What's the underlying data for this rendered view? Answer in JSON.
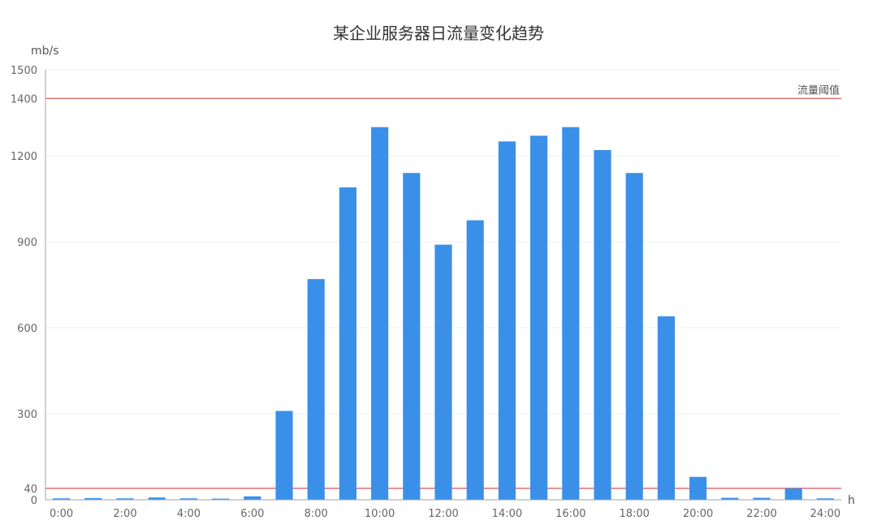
{
  "chart_data": {
    "type": "bar",
    "title": "某企业服务器日流量变化趋势",
    "ylabel": "mb/s",
    "xlabel": "h",
    "ylim": [
      0,
      1500
    ],
    "grid": true,
    "y_ticks": [
      0,
      40,
      300,
      600,
      900,
      1200,
      1400,
      1500
    ],
    "y_tick_labels": [
      "0",
      "40",
      "300",
      "600",
      "900",
      "1200",
      "1400",
      "1500"
    ],
    "x_tick_labels": [
      "0:00",
      "2:00",
      "4:00",
      "6:00",
      "8:00",
      "10:00",
      "12:00",
      "14:00",
      "16:00",
      "18:00",
      "20:00",
      "22:00",
      "24:00"
    ],
    "categories": [
      "0:00",
      "1:00",
      "2:00",
      "3:00",
      "4:00",
      "5:00",
      "6:00",
      "7:00",
      "8:00",
      "9:00",
      "10:00",
      "11:00",
      "12:00",
      "13:00",
      "14:00",
      "15:00",
      "16:00",
      "17:00",
      "18:00",
      "19:00",
      "20:00",
      "21:00",
      "22:00",
      "23:00",
      "24:00"
    ],
    "values": [
      5,
      6,
      5,
      8,
      5,
      4,
      12,
      310,
      770,
      1090,
      1300,
      1140,
      890,
      975,
      1250,
      1270,
      1300,
      1220,
      1140,
      640,
      80,
      7,
      7,
      40,
      5
    ],
    "reference_lines": [
      {
        "name": "流量阈值",
        "value": 1400
      },
      {
        "value": 40
      }
    ],
    "colors": {
      "bar": "#3a90e8",
      "threshold": "#d9534f",
      "grid": "#eaeef2",
      "axis": "#9aa3ad"
    }
  }
}
